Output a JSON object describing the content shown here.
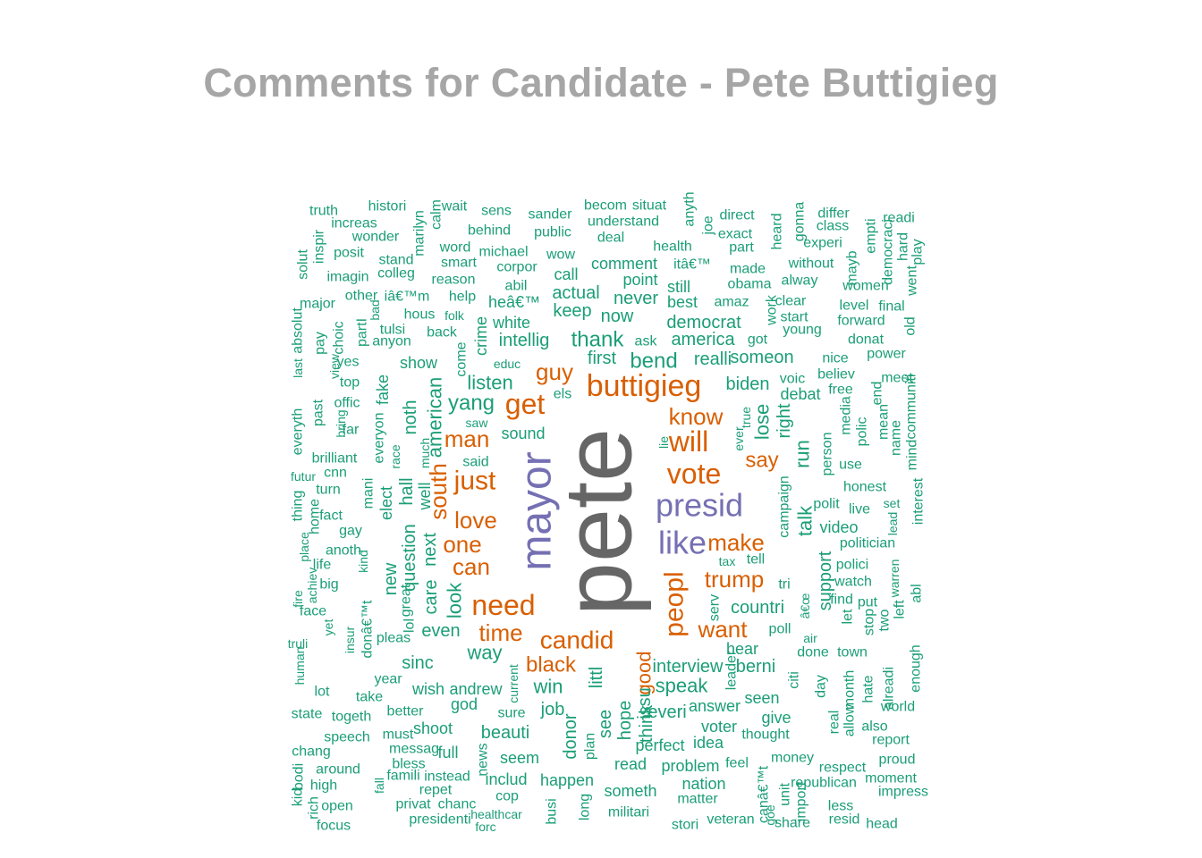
{
  "title": "Comments for Candidate - Pete Buttigieg",
  "colors": {
    "title": "#a6a6a6",
    "tier_top": "#666666",
    "tier_purple": "#7570b3",
    "tier_orange": "#d95f02",
    "tier_green": "#1b9e77"
  },
  "words": [
    {
      "text": "pete",
      "tier": 4
    },
    {
      "text": "mayor",
      "tier": 3
    },
    {
      "text": "presid",
      "tier": 3
    },
    {
      "text": "like",
      "tier": 3
    },
    {
      "text": "buttigieg",
      "tier": 2
    },
    {
      "text": "get",
      "tier": 2
    },
    {
      "text": "guy",
      "tier": 2
    },
    {
      "text": "know",
      "tier": 2
    },
    {
      "text": "will",
      "tier": 2
    },
    {
      "text": "vote",
      "tier": 2
    },
    {
      "text": "say",
      "tier": 2
    },
    {
      "text": "man",
      "tier": 2
    },
    {
      "text": "just",
      "tier": 2
    },
    {
      "text": "south",
      "tier": 2
    },
    {
      "text": "love",
      "tier": 2
    },
    {
      "text": "one",
      "tier": 2
    },
    {
      "text": "can",
      "tier": 2
    },
    {
      "text": "make",
      "tier": 2
    },
    {
      "text": "peopl",
      "tier": 2
    },
    {
      "text": "trump",
      "tier": 2
    },
    {
      "text": "need",
      "tier": 2
    },
    {
      "text": "want",
      "tier": 2
    },
    {
      "text": "time",
      "tier": 2
    },
    {
      "text": "candid",
      "tier": 2
    },
    {
      "text": "black",
      "tier": 2
    },
    {
      "text": "good",
      "tier": 2
    },
    {
      "text": "truth",
      "tier": 1
    },
    {
      "text": "histori",
      "tier": 1
    },
    {
      "text": "wait",
      "tier": 1
    },
    {
      "text": "sens",
      "tier": 1
    },
    {
      "text": "sander",
      "tier": 1
    },
    {
      "text": "becom",
      "tier": 1
    },
    {
      "text": "situat",
      "tier": 1
    },
    {
      "text": "direct",
      "tier": 1
    },
    {
      "text": "differ",
      "tier": 1
    },
    {
      "text": "class",
      "tier": 1
    },
    {
      "text": "readi",
      "tier": 1
    },
    {
      "text": "increas",
      "tier": 1
    },
    {
      "text": "wonder",
      "tier": 1
    },
    {
      "text": "behind",
      "tier": 1
    },
    {
      "text": "public",
      "tier": 1
    },
    {
      "text": "understand",
      "tier": 1
    },
    {
      "text": "exact",
      "tier": 1
    },
    {
      "text": "experi",
      "tier": 1
    },
    {
      "text": "part",
      "tier": 1
    },
    {
      "text": "health",
      "tier": 1
    },
    {
      "text": "word",
      "tier": 1
    },
    {
      "text": "michael",
      "tier": 1
    },
    {
      "text": "wow",
      "tier": 1
    },
    {
      "text": "deal",
      "tier": 1
    },
    {
      "text": "posit",
      "tier": 1
    },
    {
      "text": "stand",
      "tier": 1
    },
    {
      "text": "smart",
      "tier": 1
    },
    {
      "text": "corpor",
      "tier": 1
    },
    {
      "text": "comment",
      "tier": 1
    },
    {
      "text": "itâ€™",
      "tier": 1
    },
    {
      "text": "made",
      "tier": 1
    },
    {
      "text": "without",
      "tier": 1
    },
    {
      "text": "imagin",
      "tier": 1
    },
    {
      "text": "colleg",
      "tier": 1
    },
    {
      "text": "reason",
      "tier": 1
    },
    {
      "text": "abil",
      "tier": 1
    },
    {
      "text": "call",
      "tier": 1
    },
    {
      "text": "point",
      "tier": 1
    },
    {
      "text": "alway",
      "tier": 1
    },
    {
      "text": "women",
      "tier": 1
    },
    {
      "text": "still",
      "tier": 1
    },
    {
      "text": "obama",
      "tier": 1
    },
    {
      "text": "other",
      "tier": 1
    },
    {
      "text": "iâ€™m",
      "tier": 1
    },
    {
      "text": "help",
      "tier": 1
    },
    {
      "text": "heâ€™",
      "tier": 1
    },
    {
      "text": "actual",
      "tier": 1
    },
    {
      "text": "never",
      "tier": 1
    },
    {
      "text": "best",
      "tier": 1
    },
    {
      "text": "amaz",
      "tier": 1
    },
    {
      "text": "clear",
      "tier": 1
    },
    {
      "text": "level",
      "tier": 1
    },
    {
      "text": "final",
      "tier": 1
    },
    {
      "text": "major",
      "tier": 1
    },
    {
      "text": "hous",
      "tier": 1
    },
    {
      "text": "folk",
      "tier": 1
    },
    {
      "text": "keep",
      "tier": 1
    },
    {
      "text": "now",
      "tier": 1
    },
    {
      "text": "start",
      "tier": 1
    },
    {
      "text": "forward",
      "tier": 1
    },
    {
      "text": "white",
      "tier": 1
    },
    {
      "text": "democrat",
      "tier": 1
    },
    {
      "text": "young",
      "tier": 1
    },
    {
      "text": "tulsi",
      "tier": 1
    },
    {
      "text": "back",
      "tier": 1
    },
    {
      "text": "america",
      "tier": 1
    },
    {
      "text": "got",
      "tier": 1
    },
    {
      "text": "donat",
      "tier": 1
    },
    {
      "text": "anyon",
      "tier": 1
    },
    {
      "text": "intellig",
      "tier": 1
    },
    {
      "text": "thank",
      "tier": 1
    },
    {
      "text": "ask",
      "tier": 1
    },
    {
      "text": "power",
      "tier": 1
    },
    {
      "text": "first",
      "tier": 1
    },
    {
      "text": "bend",
      "tier": 1
    },
    {
      "text": "realli",
      "tier": 1
    },
    {
      "text": "someon",
      "tier": 1
    },
    {
      "text": "nice",
      "tier": 1
    },
    {
      "text": "yes",
      "tier": 1
    },
    {
      "text": "show",
      "tier": 1
    },
    {
      "text": "educ",
      "tier": 1
    },
    {
      "text": "top",
      "tier": 1
    },
    {
      "text": "listen",
      "tier": 1
    },
    {
      "text": "els",
      "tier": 1
    },
    {
      "text": "voic",
      "tier": 1
    },
    {
      "text": "believ",
      "tier": 1
    },
    {
      "text": "meet",
      "tier": 1
    },
    {
      "text": "free",
      "tier": 1
    },
    {
      "text": "offic",
      "tier": 1
    },
    {
      "text": "yang",
      "tier": 1
    },
    {
      "text": "biden",
      "tier": 1
    },
    {
      "text": "debat",
      "tier": 1
    },
    {
      "text": "saw",
      "tier": 1
    },
    {
      "text": "far",
      "tier": 1
    },
    {
      "text": "sound",
      "tier": 1
    },
    {
      "text": "brilliant",
      "tier": 1
    },
    {
      "text": "said",
      "tier": 1
    },
    {
      "text": "use",
      "tier": 1
    },
    {
      "text": "cnn",
      "tier": 1
    },
    {
      "text": "futur",
      "tier": 1
    },
    {
      "text": "honest",
      "tier": 1
    },
    {
      "text": "turn",
      "tier": 1
    },
    {
      "text": "set",
      "tier": 1
    },
    {
      "text": "live",
      "tier": 1
    },
    {
      "text": "fact",
      "tier": 1
    },
    {
      "text": "polit",
      "tier": 1
    },
    {
      "text": "video",
      "tier": 1
    },
    {
      "text": "gay",
      "tier": 1
    },
    {
      "text": "politician",
      "tier": 1
    },
    {
      "text": "anoth",
      "tier": 1
    },
    {
      "text": "tax",
      "tier": 1
    },
    {
      "text": "tell",
      "tier": 1
    },
    {
      "text": "polici",
      "tier": 1
    },
    {
      "text": "life",
      "tier": 1
    },
    {
      "text": "big",
      "tier": 1
    },
    {
      "text": "watch",
      "tier": 1
    },
    {
      "text": "tri",
      "tier": 1
    },
    {
      "text": "find",
      "tier": 1
    },
    {
      "text": "put",
      "tier": 1
    },
    {
      "text": "countri",
      "tier": 1
    },
    {
      "text": "face",
      "tier": 1
    },
    {
      "text": "pleas",
      "tier": 1
    },
    {
      "text": "even",
      "tier": 1
    },
    {
      "text": "poll",
      "tier": 1
    },
    {
      "text": "air",
      "tier": 1
    },
    {
      "text": "truli",
      "tier": 1
    },
    {
      "text": "hear",
      "tier": 1
    },
    {
      "text": "done",
      "tier": 1
    },
    {
      "text": "town",
      "tier": 1
    },
    {
      "text": "way",
      "tier": 1
    },
    {
      "text": "sinc",
      "tier": 1
    },
    {
      "text": "interview",
      "tier": 1
    },
    {
      "text": "berni",
      "tier": 1
    },
    {
      "text": "year",
      "tier": 1
    },
    {
      "text": "lot",
      "tier": 1
    },
    {
      "text": "wish",
      "tier": 1
    },
    {
      "text": "andrew",
      "tier": 1
    },
    {
      "text": "win",
      "tier": 1
    },
    {
      "text": "speak",
      "tier": 1
    },
    {
      "text": "take",
      "tier": 1
    },
    {
      "text": "seen",
      "tier": 1
    },
    {
      "text": "god",
      "tier": 1
    },
    {
      "text": "answer",
      "tier": 1
    },
    {
      "text": "better",
      "tier": 1
    },
    {
      "text": "sure",
      "tier": 1
    },
    {
      "text": "job",
      "tier": 1
    },
    {
      "text": "everi",
      "tier": 1
    },
    {
      "text": "give",
      "tier": 1
    },
    {
      "text": "state",
      "tier": 1
    },
    {
      "text": "togeth",
      "tier": 1
    },
    {
      "text": "world",
      "tier": 1
    },
    {
      "text": "shoot",
      "tier": 1
    },
    {
      "text": "voter",
      "tier": 1
    },
    {
      "text": "also",
      "tier": 1
    },
    {
      "text": "must",
      "tier": 1
    },
    {
      "text": "beauti",
      "tier": 1
    },
    {
      "text": "thought",
      "tier": 1
    },
    {
      "text": "report",
      "tier": 1
    },
    {
      "text": "speech",
      "tier": 1
    },
    {
      "text": "perfect",
      "tier": 1
    },
    {
      "text": "idea",
      "tier": 1
    },
    {
      "text": "chang",
      "tier": 1
    },
    {
      "text": "messag",
      "tier": 1
    },
    {
      "text": "full",
      "tier": 1
    },
    {
      "text": "seem",
      "tier": 1
    },
    {
      "text": "money",
      "tier": 1
    },
    {
      "text": "proud",
      "tier": 1
    },
    {
      "text": "bless",
      "tier": 1
    },
    {
      "text": "read",
      "tier": 1
    },
    {
      "text": "problem",
      "tier": 1
    },
    {
      "text": "feel",
      "tier": 1
    },
    {
      "text": "respect",
      "tier": 1
    },
    {
      "text": "around",
      "tier": 1
    },
    {
      "text": "instead",
      "tier": 1
    },
    {
      "text": "famili",
      "tier": 1
    },
    {
      "text": "includ",
      "tier": 1
    },
    {
      "text": "happen",
      "tier": 1
    },
    {
      "text": "nation",
      "tier": 1
    },
    {
      "text": "republican",
      "tier": 1
    },
    {
      "text": "moment",
      "tier": 1
    },
    {
      "text": "high",
      "tier": 1
    },
    {
      "text": "repet",
      "tier": 1
    },
    {
      "text": "someth",
      "tier": 1
    },
    {
      "text": "impress",
      "tier": 1
    },
    {
      "text": "cop",
      "tier": 1
    },
    {
      "text": "matter",
      "tier": 1
    },
    {
      "text": "open",
      "tier": 1
    },
    {
      "text": "privat",
      "tier": 1
    },
    {
      "text": "chanc",
      "tier": 1
    },
    {
      "text": "less",
      "tier": 1
    },
    {
      "text": "healthcar",
      "tier": 1
    },
    {
      "text": "militari",
      "tier": 1
    },
    {
      "text": "presidenti",
      "tier": 1
    },
    {
      "text": "veteran",
      "tier": 1
    },
    {
      "text": "share",
      "tier": 1
    },
    {
      "text": "resid",
      "tier": 1
    },
    {
      "text": "head",
      "tier": 1
    },
    {
      "text": "focus",
      "tier": 1
    },
    {
      "text": "forc",
      "tier": 1
    },
    {
      "text": "stori",
      "tier": 1
    },
    {
      "text": "solut",
      "tier": 1
    },
    {
      "text": "inspir",
      "tier": 1
    },
    {
      "text": "marilyn",
      "tier": 1
    },
    {
      "text": "calm",
      "tier": 1
    },
    {
      "text": "anyth",
      "tier": 1
    },
    {
      "text": "joe",
      "tier": 1
    },
    {
      "text": "heard",
      "tier": 1
    },
    {
      "text": "gonna",
      "tier": 1
    },
    {
      "text": "mayb",
      "tier": 1
    },
    {
      "text": "empti",
      "tier": 1
    },
    {
      "text": "democraci",
      "tier": 1
    },
    {
      "text": "hard",
      "tier": 1
    },
    {
      "text": "play",
      "tier": 1
    },
    {
      "text": "went",
      "tier": 1
    },
    {
      "text": "bad",
      "tier": 1
    },
    {
      "text": "partI",
      "tier": 1
    },
    {
      "text": "choic",
      "tier": 1
    },
    {
      "text": "pay",
      "tier": 1
    },
    {
      "text": "absolut",
      "tier": 1
    },
    {
      "text": "last",
      "tier": 1
    },
    {
      "text": "view",
      "tier": 1
    },
    {
      "text": "crime",
      "tier": 1
    },
    {
      "text": "come",
      "tier": 1
    },
    {
      "text": "work",
      "tier": 1
    },
    {
      "text": "old",
      "tier": 1
    },
    {
      "text": "past",
      "tier": 1
    },
    {
      "text": "everyth",
      "tier": 1
    },
    {
      "text": "bring",
      "tier": 1
    },
    {
      "text": "fake",
      "tier": 1
    },
    {
      "text": "everyon",
      "tier": 1
    },
    {
      "text": "noth",
      "tier": 1
    },
    {
      "text": "american",
      "tier": 1
    },
    {
      "text": "much",
      "tier": 1
    },
    {
      "text": "true",
      "tier": 1
    },
    {
      "text": "ever",
      "tier": 1
    },
    {
      "text": "lie",
      "tier": 1
    },
    {
      "text": "lose",
      "tier": 1
    },
    {
      "text": "right",
      "tier": 1
    },
    {
      "text": "run",
      "tier": 1
    },
    {
      "text": "person",
      "tier": 1
    },
    {
      "text": "media",
      "tier": 1
    },
    {
      "text": "polic",
      "tier": 1
    },
    {
      "text": "mean",
      "tier": 1
    },
    {
      "text": "end",
      "tier": 1
    },
    {
      "text": "name",
      "tier": 1
    },
    {
      "text": "communiti",
      "tier": 1
    },
    {
      "text": "mind",
      "tier": 1
    },
    {
      "text": "race",
      "tier": 1
    },
    {
      "text": "hall",
      "tier": 1
    },
    {
      "text": "well",
      "tier": 1
    },
    {
      "text": "mani",
      "tier": 1
    },
    {
      "text": "elect",
      "tier": 1
    },
    {
      "text": "thing",
      "tier": 1
    },
    {
      "text": "home",
      "tier": 1
    },
    {
      "text": "place",
      "tier": 1
    },
    {
      "text": "kind",
      "tier": 1
    },
    {
      "text": "new",
      "tier": 1
    },
    {
      "text": "question",
      "tier": 1
    },
    {
      "text": "next",
      "tier": 1
    },
    {
      "text": "great",
      "tier": 1
    },
    {
      "text": "lol",
      "tier": 1
    },
    {
      "text": "care",
      "tier": 1
    },
    {
      "text": "look",
      "tier": 1
    },
    {
      "text": "talk",
      "tier": 1
    },
    {
      "text": "support",
      "tier": 1
    },
    {
      "text": "campaign",
      "tier": 1
    },
    {
      "text": "â€œ",
      "tier": 1
    },
    {
      "text": "serv",
      "tier": 1
    },
    {
      "text": "let",
      "tier": 1
    },
    {
      "text": "stop",
      "tier": 1
    },
    {
      "text": "two",
      "tier": 1
    },
    {
      "text": "left",
      "tier": 1
    },
    {
      "text": "warren",
      "tier": 1
    },
    {
      "text": "abl",
      "tier": 1
    },
    {
      "text": "interest",
      "tier": 1
    },
    {
      "text": "lead",
      "tier": 1
    },
    {
      "text": "fire",
      "tier": 1
    },
    {
      "text": "achiev",
      "tier": 1
    },
    {
      "text": "yet",
      "tier": 1
    },
    {
      "text": "insur",
      "tier": 1
    },
    {
      "text": "donâ€™t",
      "tier": 1
    },
    {
      "text": "human",
      "tier": 1
    },
    {
      "text": "leader",
      "tier": 1
    },
    {
      "text": "citi",
      "tier": 1
    },
    {
      "text": "day",
      "tier": 1
    },
    {
      "text": "month",
      "tier": 1
    },
    {
      "text": "hate",
      "tier": 1
    },
    {
      "text": "alreadi",
      "tier": 1
    },
    {
      "text": "enough",
      "tier": 1
    },
    {
      "text": "current",
      "tier": 1
    },
    {
      "text": "littl",
      "tier": 1
    },
    {
      "text": "see",
      "tier": 1
    },
    {
      "text": "hope",
      "tier": 1
    },
    {
      "text": "issu",
      "tier": 1
    },
    {
      "text": "think",
      "tier": 1
    },
    {
      "text": "real",
      "tier": 1
    },
    {
      "text": "allow",
      "tier": 1
    },
    {
      "text": "donor",
      "tier": 1
    },
    {
      "text": "plan",
      "tier": 1
    },
    {
      "text": "news",
      "tier": 1
    },
    {
      "text": "fall",
      "tier": 1
    },
    {
      "text": "canâ€™t",
      "tier": 1
    },
    {
      "text": "unit",
      "tier": 1
    },
    {
      "text": "import",
      "tier": 1
    },
    {
      "text": "goe",
      "tier": 1
    },
    {
      "text": "kid",
      "tier": 1
    },
    {
      "text": "bodi",
      "tier": 1
    },
    {
      "text": "rich",
      "tier": 1
    },
    {
      "text": "busi",
      "tier": 1
    },
    {
      "text": "long",
      "tier": 1
    },
    {
      "text": "articul",
      "tier": 1
    }
  ]
}
